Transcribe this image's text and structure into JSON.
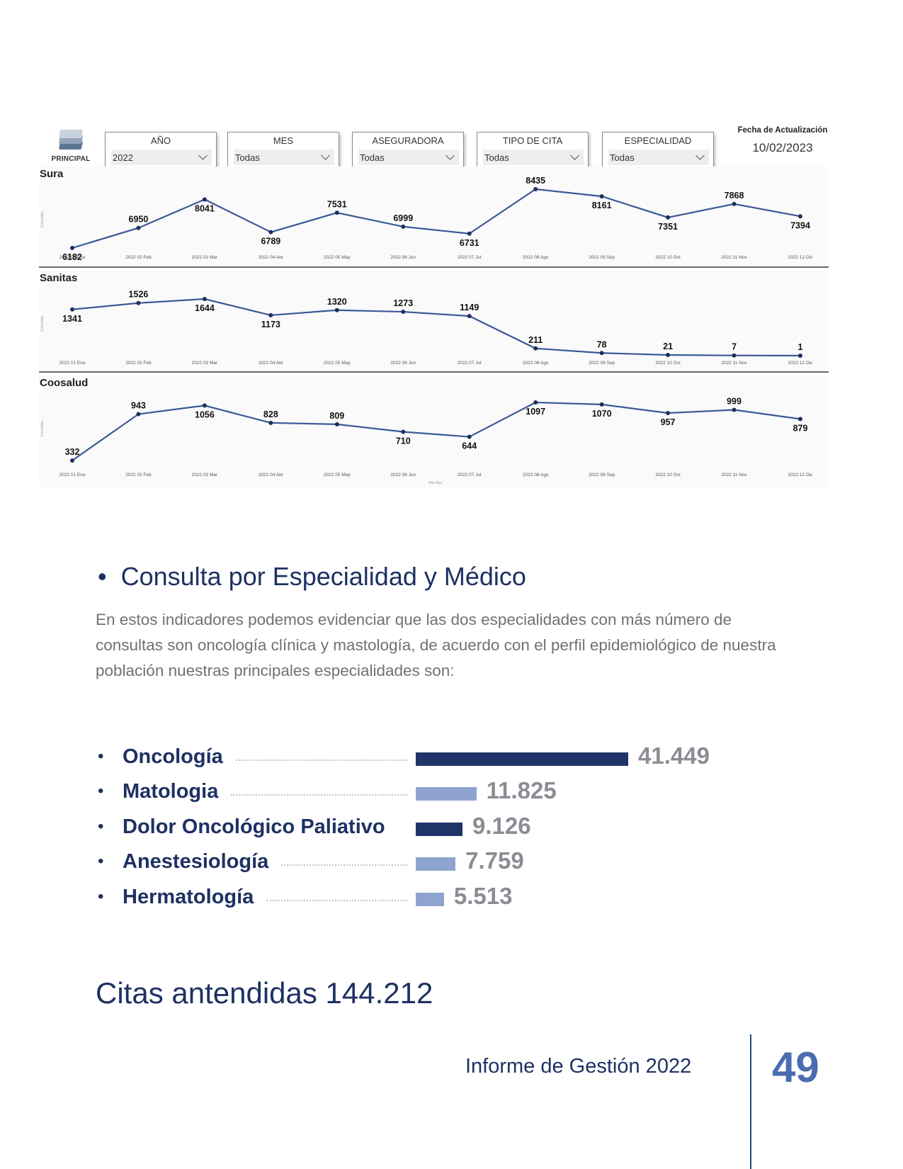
{
  "dashboard": {
    "logo_label": "PRINCIPAL",
    "filters": [
      {
        "label": "AÑO",
        "value": "2022"
      },
      {
        "label": "MES",
        "value": "Todas"
      },
      {
        "label": "ASEGURADORA",
        "value": "Todas"
      },
      {
        "label": "TIPO DE CITA",
        "value": "Todas"
      },
      {
        "label": "ESPECIALIDAD",
        "value": "Todas"
      }
    ],
    "update_label": "Fecha de Actualización",
    "update_date": "10/02/2023"
  },
  "chart_data": [
    {
      "type": "line",
      "title": "Sura",
      "ylabel": "Consultas",
      "categories": [
        "2022 01 Ene",
        "2022 02 Feb",
        "2022 03 Mar",
        "2022 04 Abr",
        "2022 05 May",
        "2022 06 Jun",
        "2022 07 Jul",
        "2022 08 Ago",
        "2022 09 Sep",
        "2022 10 Oct",
        "2022 11 Nov",
        "2022 12 Dic"
      ],
      "values": [
        6182,
        6950,
        8041,
        6789,
        7531,
        6999,
        6731,
        8435,
        8161,
        7351,
        7868,
        7394
      ],
      "color": "#3b5997"
    },
    {
      "type": "line",
      "title": "Sanitas",
      "ylabel": "Consultas",
      "categories": [
        "2022 01 Ene",
        "2022 02 Feb",
        "2022 03 Mar",
        "2022 04 Abr",
        "2022 05 May",
        "2022 06 Jun",
        "2022 07 Jul",
        "2022 08 Ago",
        "2022 09 Sep",
        "2022 10 Oct",
        "2022 11 Nov",
        "2022 12 Dic"
      ],
      "values": [
        1341,
        1526,
        1644,
        1173,
        1320,
        1273,
        1149,
        211,
        78,
        21,
        7,
        1
      ],
      "color": "#3b5997"
    },
    {
      "type": "line",
      "title": "Coosalud",
      "ylabel": "Consultas",
      "xlabel": "Año Mes",
      "categories": [
        "2022 01 Ene",
        "2022 02 Feb",
        "2022 03 Mar",
        "2022 04 Abr",
        "2022 05 May",
        "2022 06 Jun",
        "2022 07 Jul",
        "2022 08 Ago",
        "2022 09 Sep",
        "2022 10 Oct",
        "2022 11 Nov",
        "2022 12 Dic"
      ],
      "values": [
        332,
        943,
        1056,
        828,
        809,
        710,
        644,
        1097,
        1070,
        957,
        999,
        879
      ],
      "color": "#3b5997"
    },
    {
      "type": "bar",
      "orientation": "horizontal",
      "categories": [
        "Oncología",
        "Matologia",
        "Dolor Oncológico Paliativo",
        "Anestesiología",
        "Hermatología"
      ],
      "values": [
        41449,
        11825,
        9126,
        7759,
        5513
      ],
      "value_labels": [
        "41.449",
        "11.825",
        "9.126",
        "7.759",
        "5.513"
      ],
      "colors": [
        "#1f3468",
        "#8ea3cf",
        "#1f3468",
        "#8ea3cf",
        "#8ea3cf"
      ]
    }
  ],
  "section": {
    "title": "Consulta por Especialidad y Médico",
    "bullet": "•",
    "paragraph": "En estos indicadores podemos evidenciar que las dos especialidades con más número de consultas  son oncología clínica y mastología, de acuerdo con el perfil epidemiológico de nuestra población nuestras principales especialidades son:"
  },
  "citas": "Citas antendidas 144.212",
  "footer": {
    "report": "Informe de Gestión 2022",
    "page": "49"
  }
}
